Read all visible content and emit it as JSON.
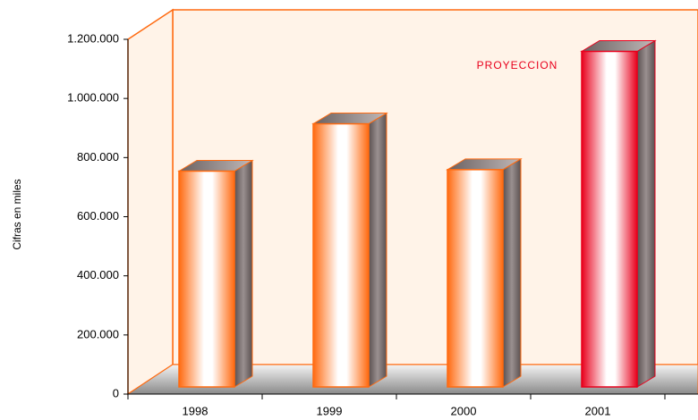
{
  "chart_data": {
    "type": "bar",
    "y_label": "Cifras en miles",
    "annotation": "PROYECCION",
    "categories": [
      "1998",
      "1999",
      "2000",
      "2001"
    ],
    "values": [
      730000,
      890000,
      735000,
      1135000
    ],
    "colors": [
      "#ff6a10",
      "#ff6a10",
      "#ff6a10",
      "#e8001c"
    ],
    "ylim": [
      0,
      1200000
    ],
    "yticks": [
      0,
      {
        "value": 200000,
        "label": "200.000"
      },
      {
        "value": 400000,
        "label": "400.000"
      },
      {
        "value": 600000,
        "label": "600.000"
      },
      {
        "value": 800000,
        "label": "800.000"
      },
      {
        "value": 1000000,
        "label": "1.000.000"
      },
      {
        "value": 1200000,
        "label": "1.200.000"
      }
    ],
    "grid": false
  }
}
